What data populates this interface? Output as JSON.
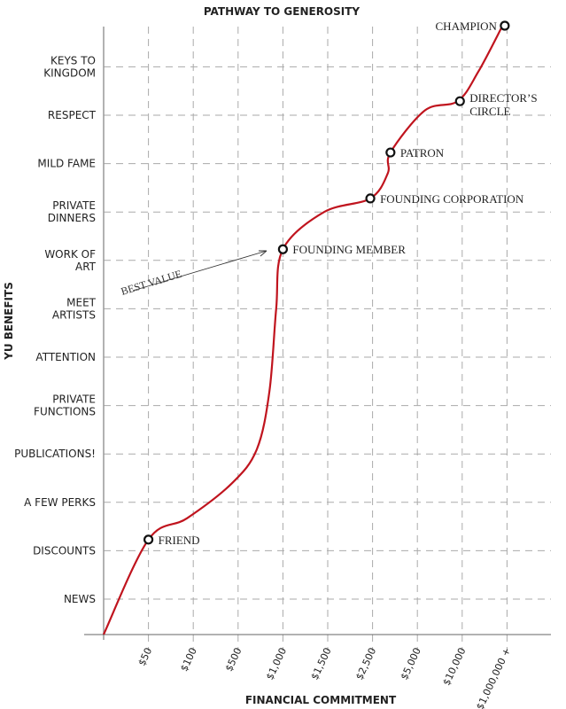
{
  "chart_data": {
    "type": "line",
    "title": "PATHWAY TO GENEROSITY",
    "xlabel": "FINANCIAL COMMITMENT",
    "ylabel": "YU BENEFITS",
    "x_tick_labels": [
      "$50",
      "$100",
      "$500",
      "$1,000",
      "$1,500",
      "$2,500",
      "$5,000",
      "$10,000",
      "$1,000,000 +"
    ],
    "y_tick_labels": [
      "NEWS",
      "DISCOUNTS",
      "A FEW PERKS",
      "PUBLICATIONS!",
      "PRIVATE FUNCTIONS",
      "ATTENTION",
      "MEET ARTISTS",
      "WORK OF ART",
      "PRIVATE DINNERS",
      "MILD FAME",
      "RESPECT",
      "KEYS TO KINGDOM"
    ],
    "grid": true,
    "line_color": "#c0141e",
    "curve": [
      [
        0,
        0.27
      ],
      [
        1,
        2.23
      ],
      [
        1.86,
        2.67
      ],
      [
        2.87,
        3.4
      ],
      [
        3.42,
        4.1
      ],
      [
        3.7,
        5.3
      ],
      [
        3.85,
        7.0
      ],
      [
        4,
        8.23
      ],
      [
        4.92,
        9.0
      ],
      [
        5.95,
        9.28
      ],
      [
        6.34,
        9.8
      ],
      [
        6.4,
        10.23
      ],
      [
        7.17,
        11.1
      ],
      [
        7.9,
        11.29
      ],
      [
        8.36,
        11.9
      ],
      [
        8.9,
        12.85
      ]
    ],
    "milestones": [
      {
        "label": "FRIEND",
        "x": 1,
        "y": 2.23
      },
      {
        "label": "FOUNDING MEMBER",
        "x": 4,
        "y": 8.23
      },
      {
        "label": "FOUNDING CORPORATION",
        "x": 5.95,
        "y": 9.28
      },
      {
        "label": "PATRON",
        "x": 6.4,
        "y": 10.23
      },
      {
        "label": "DIRECTOR'S CIRCLE",
        "x": 7.95,
        "y": 11.29
      },
      {
        "label": "CHAMPION",
        "x": 8.95,
        "y": 12.85
      }
    ],
    "annotation": {
      "text": "BEST VALUE",
      "points_to": "FOUNDING MEMBER"
    }
  }
}
